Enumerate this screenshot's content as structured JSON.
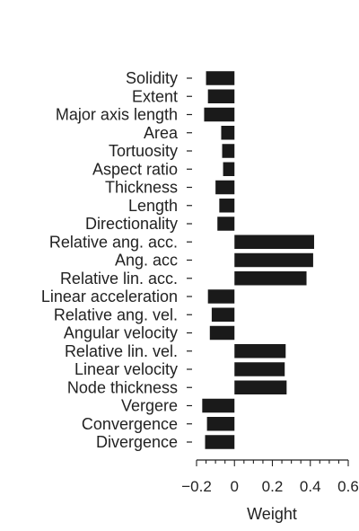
{
  "chart_data": {
    "type": "bar",
    "orientation": "horizontal",
    "title": "",
    "xlabel": "Weight",
    "ylabel": "",
    "xlim": [
      -0.2,
      0.6
    ],
    "xticks": [
      -0.2,
      0,
      0.2,
      0.4,
      0.6
    ],
    "xtick_labels": [
      "−0.2",
      "0",
      "0.2",
      "0.4",
      "0.6"
    ],
    "grid": false,
    "bar_color": "#1a1a1a",
    "categories": [
      "Solidity",
      "Extent",
      "Major axis length",
      "Area",
      "Tortuosity",
      "Aspect ratio",
      "Thickness",
      "Length",
      "Directionality",
      "Relative ang. acc.",
      "Ang. acc",
      "Relative lin. acc.",
      "Linear acceleration",
      "Relative ang. vel.",
      "Angular velocity",
      "Relative lin. vel.",
      "Linear velocity",
      "Node thickness",
      "Vergere",
      "Convergence",
      "Divergence"
    ],
    "values": [
      -0.15,
      -0.14,
      -0.16,
      -0.07,
      -0.065,
      -0.06,
      -0.1,
      -0.08,
      -0.09,
      0.42,
      0.415,
      0.38,
      -0.14,
      -0.12,
      -0.13,
      0.27,
      0.265,
      0.275,
      -0.17,
      -0.145,
      -0.155
    ]
  }
}
